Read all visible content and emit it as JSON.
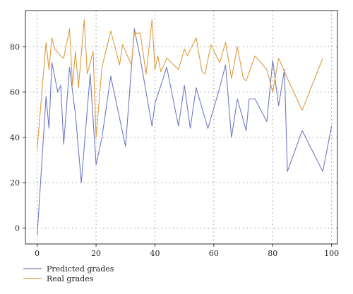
{
  "chart_data": {
    "type": "line",
    "title": "",
    "xlabel": "",
    "ylabel": "",
    "xlim": [
      -4,
      102
    ],
    "ylim": [
      -7,
      96
    ],
    "grid": true,
    "legend_position": "bottom-left",
    "xticks": [
      0,
      20,
      40,
      60,
      80,
      100
    ],
    "yticks": [
      0,
      20,
      40,
      60,
      80
    ],
    "series": [
      {
        "name": "Predicted grades",
        "color": "#7079c4",
        "x": [
          0,
          3,
          4,
          5,
          7,
          8,
          9,
          11,
          13,
          15,
          18,
          20,
          22,
          25,
          30,
          33,
          35,
          39,
          40,
          44,
          48,
          50,
          52,
          54,
          58,
          62,
          64,
          66,
          68,
          71,
          72,
          74,
          78,
          80,
          82,
          84,
          85,
          90,
          97,
          100
        ],
        "y": [
          -3,
          58,
          44,
          73,
          60,
          63,
          37,
          71,
          50,
          20,
          68,
          28,
          40,
          67,
          36,
          88,
          75,
          45,
          55,
          71,
          45,
          63,
          44,
          62,
          44,
          62,
          72,
          40,
          57,
          43,
          57,
          57,
          47,
          74,
          54,
          70,
          25,
          43,
          25,
          45
        ]
      },
      {
        "name": "Real grades",
        "color": "#e09b3e",
        "x": [
          0,
          3,
          4,
          5,
          6,
          8,
          9,
          11,
          12,
          13,
          14,
          16,
          17,
          19,
          20,
          22,
          25,
          28,
          29,
          32,
          33,
          34,
          35,
          37,
          39,
          40,
          41,
          42,
          44,
          48,
          50,
          51,
          54,
          56,
          57,
          59,
          62,
          64,
          66,
          68,
          70,
          71,
          74,
          78,
          80,
          82,
          85,
          90,
          97
        ],
        "y": [
          35,
          82,
          70,
          84,
          79,
          76,
          75,
          88,
          63,
          78,
          62,
          92,
          68,
          78,
          40,
          71,
          87,
          72,
          81,
          72,
          86,
          86,
          86,
          68,
          92,
          70,
          76,
          69,
          75,
          70,
          79,
          76,
          84,
          69,
          68,
          81,
          73,
          82,
          66,
          80,
          66,
          65,
          76,
          70,
          60,
          75,
          66,
          52,
          75
        ]
      }
    ]
  }
}
